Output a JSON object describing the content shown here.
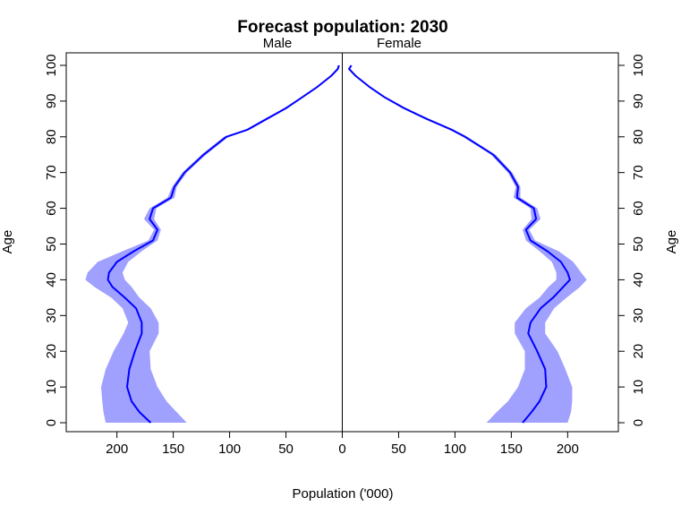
{
  "chart_data": {
    "type": "line",
    "title": "Forecast population: 2030",
    "left_panel_label": "Male",
    "right_panel_label": "Female",
    "xlabel": "Population ('000)",
    "ylabel": "Age",
    "xlim": [
      -245,
      245
    ],
    "ylim": [
      -2.5,
      103.5
    ],
    "x_ticks": [
      -200,
      -150,
      -100,
      -50,
      0,
      50,
      100,
      150,
      200
    ],
    "x_tick_labels": [
      "200",
      "150",
      "100",
      "50",
      "0",
      "50",
      "100",
      "150",
      "200"
    ],
    "y_ticks": [
      0,
      10,
      20,
      30,
      40,
      50,
      60,
      70,
      80,
      90,
      100
    ],
    "y_tick_labels": [
      "0",
      "10",
      "20",
      "30",
      "40",
      "50",
      "60",
      "70",
      "80",
      "90",
      "100"
    ],
    "colors": {
      "line": "#0000ff",
      "band": "#a0a0ff",
      "axis": "#000000"
    },
    "series": [
      {
        "name": "Male",
        "ages": [
          0,
          3,
          6,
          10,
          15,
          20,
          25,
          28,
          32,
          35,
          38,
          40,
          42,
          45,
          48,
          51,
          54,
          57,
          60,
          63,
          66,
          70,
          75,
          80,
          82,
          85,
          88,
          91,
          94,
          97,
          99,
          100
        ],
        "median": [
          170,
          180,
          187,
          191,
          189,
          184,
          178,
          178,
          183,
          193,
          204,
          208,
          207,
          200,
          185,
          168,
          164,
          171,
          168,
          152,
          149,
          140,
          123,
          103,
          84,
          67,
          50,
          36,
          22,
          10,
          4,
          3
        ],
        "lower": [
          138,
          147,
          156,
          164,
          170,
          171,
          163,
          163,
          170,
          180,
          187,
          193,
          195,
          190,
          178,
          164,
          161,
          167,
          165,
          149,
          147,
          138,
          121,
          101,
          82,
          65,
          49,
          35,
          21,
          9,
          3,
          2
        ],
        "upper": [
          210,
          212,
          213,
          214,
          210,
          203,
          194,
          190,
          195,
          205,
          220,
          228,
          226,
          217,
          195,
          172,
          167,
          176,
          171,
          155,
          151,
          142,
          125,
          105,
          86,
          69,
          52,
          37,
          23,
          11,
          5,
          4
        ]
      },
      {
        "name": "Female",
        "ages": [
          0,
          3,
          6,
          10,
          15,
          20,
          25,
          28,
          32,
          35,
          38,
          40,
          42,
          45,
          48,
          51,
          54,
          57,
          60,
          63,
          66,
          70,
          75,
          80,
          82,
          85,
          88,
          91,
          94,
          97,
          99,
          100
        ],
        "median": [
          160,
          168,
          175,
          181,
          180,
          173,
          165,
          167,
          176,
          187,
          196,
          202,
          200,
          194,
          182,
          167,
          163,
          172,
          170,
          155,
          156,
          149,
          134,
          109,
          97,
          75,
          55,
          38,
          24,
          12,
          6,
          8
        ],
        "lower": [
          128,
          137,
          147,
          156,
          162,
          162,
          153,
          153,
          163,
          175,
          183,
          190,
          190,
          186,
          175,
          163,
          160,
          168,
          167,
          152,
          154,
          147,
          132,
          107,
          95,
          73,
          53,
          37,
          23,
          11,
          5,
          7
        ],
        "upper": [
          200,
          203,
          204,
          204,
          198,
          191,
          180,
          180,
          188,
          199,
          211,
          217,
          212,
          205,
          192,
          171,
          166,
          176,
          173,
          158,
          158,
          151,
          136,
          111,
          99,
          77,
          57,
          39,
          25,
          13,
          7,
          9
        ]
      }
    ]
  }
}
